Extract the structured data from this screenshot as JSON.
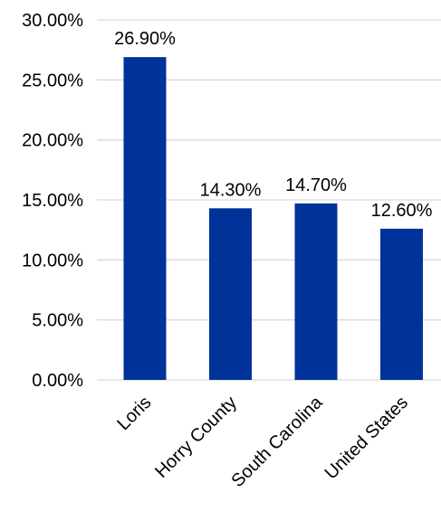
{
  "chart_data": {
    "type": "bar",
    "categories": [
      "Loris",
      "Horry County",
      "South Carolina",
      "United States"
    ],
    "values": [
      26.9,
      14.3,
      14.7,
      12.6
    ],
    "data_labels": [
      "26.90%",
      "14.30%",
      "14.70%",
      "12.60%"
    ],
    "y_ticks": [
      0,
      5,
      10,
      15,
      20,
      25,
      30
    ],
    "y_tick_labels": [
      "0.00%",
      "5.00%",
      "10.00%",
      "15.00%",
      "20.00%",
      "25.00%",
      "30.00%"
    ],
    "ylim": [
      0,
      30
    ],
    "grid": true,
    "legend": "none",
    "colors": {
      "bar": "#003399",
      "grid": "#d9d9d9",
      "text": "#000000"
    }
  }
}
